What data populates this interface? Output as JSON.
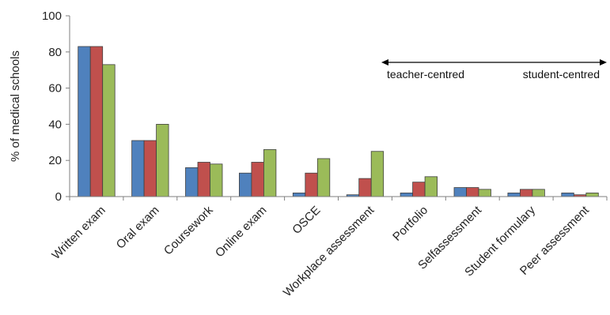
{
  "chart_data": {
    "type": "bar",
    "categories": [
      "Written exam",
      "Oral exam",
      "Coursework",
      "Online exam",
      "OSCE",
      "Workplace assessment",
      "Portfolio",
      "Selfassessment",
      "Student formulary",
      "Peer assessment"
    ],
    "series": [
      {
        "color": "#4F81BD",
        "values": [
          83,
          31,
          16,
          13,
          2,
          1,
          2,
          5,
          2,
          2
        ]
      },
      {
        "color": "#C0504D",
        "values": [
          83,
          31,
          19,
          19,
          13,
          10,
          8,
          5,
          4,
          1
        ]
      },
      {
        "color": "#9BBB59",
        "values": [
          73,
          40,
          18,
          26,
          21,
          25,
          11,
          4,
          4,
          2
        ]
      }
    ],
    "yticks": [
      "0",
      "20",
      "40",
      "60",
      "80",
      "100"
    ],
    "ylim": [
      0,
      100
    ],
    "ylabel": "% of medical schools",
    "xlabel": "",
    "grid": false,
    "annotation": {
      "left_label": "teacher-centred",
      "right_label": "student-centred",
      "arrow": "double-headed"
    }
  }
}
